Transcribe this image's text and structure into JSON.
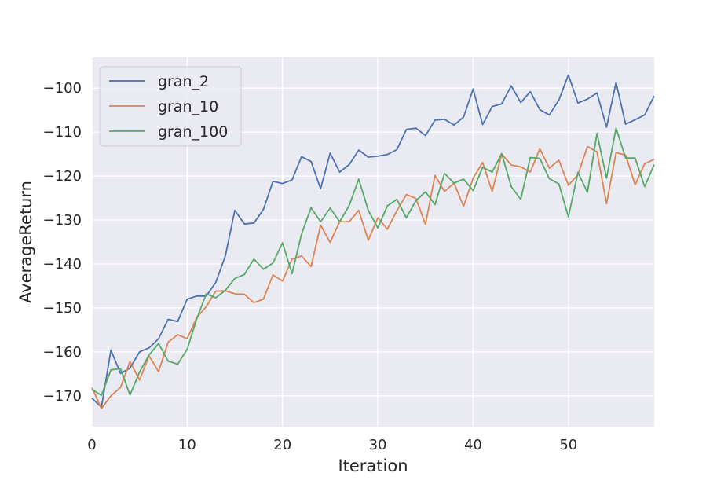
{
  "chart_data": {
    "type": "line",
    "title": "",
    "xlabel": "Iteration",
    "ylabel": "AverageReturn",
    "xlim": [
      0,
      59
    ],
    "ylim": [
      -177,
      -93
    ],
    "x_ticks": [
      0,
      10,
      20,
      30,
      40,
      50
    ],
    "y_ticks": [
      -170,
      -160,
      -150,
      -140,
      -130,
      -120,
      -110,
      -100
    ],
    "x_tick_labels": [
      "0",
      "10",
      "20",
      "30",
      "40",
      "50"
    ],
    "y_tick_labels": [
      "−170",
      "−160",
      "−150",
      "−140",
      "−130",
      "−120",
      "−110",
      "−100"
    ],
    "grid": true,
    "legend_position": "top-left",
    "background": "#eaeaf2",
    "x": [
      0,
      1,
      2,
      3,
      4,
      5,
      6,
      7,
      8,
      9,
      10,
      11,
      12,
      13,
      14,
      15,
      16,
      17,
      18,
      19,
      20,
      21,
      22,
      23,
      24,
      25,
      26,
      27,
      28,
      29,
      30,
      31,
      32,
      33,
      34,
      35,
      36,
      37,
      38,
      39,
      40,
      41,
      42,
      43,
      44,
      45,
      46,
      47,
      48,
      49,
      50,
      51,
      52,
      53,
      54,
      55,
      56,
      57,
      58,
      59
    ],
    "series": [
      {
        "name": "gran_2",
        "color": "#4c72b0",
        "values": [
          -170.5,
          -172.6,
          -159.6,
          -164.9,
          -163.7,
          -160.0,
          -159.1,
          -157.0,
          -152.6,
          -153.1,
          -148.0,
          -147.3,
          -147.3,
          -144.2,
          -138.2,
          -127.8,
          -130.9,
          -130.7,
          -127.6,
          -121.2,
          -121.7,
          -120.9,
          -115.6,
          -116.7,
          -122.9,
          -114.8,
          -119.1,
          -117.4,
          -114.1,
          -115.7,
          -115.5,
          -115.1,
          -114.0,
          -109.4,
          -109.1,
          -110.8,
          -107.3,
          -107.1,
          -108.4,
          -106.6,
          -100.2,
          -108.3,
          -104.2,
          -103.6,
          -99.5,
          -103.3,
          -100.8,
          -104.9,
          -106.1,
          -102.7,
          -97.0,
          -103.4,
          -102.5,
          -101.1,
          -108.9,
          -98.7,
          -108.2,
          -107.2,
          -106.1,
          -101.8
        ]
      },
      {
        "name": "gran_10",
        "color": "#dd8452",
        "values": [
          -168.1,
          -172.9,
          -170.0,
          -168.1,
          -162.2,
          -166.4,
          -160.9,
          -164.5,
          -157.8,
          -156.1,
          -157.0,
          -152.2,
          -149.7,
          -146.2,
          -146.1,
          -146.8,
          -146.9,
          -148.8,
          -148.0,
          -142.5,
          -143.9,
          -138.9,
          -138.2,
          -140.6,
          -131.2,
          -135.1,
          -130.4,
          -130.4,
          -127.8,
          -134.6,
          -129.5,
          -132.1,
          -127.9,
          -124.2,
          -125.1,
          -131.0,
          -119.9,
          -123.5,
          -121.6,
          -126.9,
          -120.5,
          -116.9,
          -123.5,
          -115.0,
          -117.5,
          -117.9,
          -119.1,
          -113.8,
          -118.2,
          -116.4,
          -122.1,
          -119.7,
          -113.3,
          -114.5,
          -126.3,
          -114.7,
          -115.2,
          -122.0,
          -117.2,
          -116.2
        ]
      },
      {
        "name": "gran_100",
        "color": "#55a868",
        "values": [
          -168.5,
          -169.9,
          -164.1,
          -163.8,
          -169.8,
          -164.6,
          -160.7,
          -158.1,
          -162.1,
          -162.8,
          -159.4,
          -152.5,
          -146.8,
          -147.7,
          -146.0,
          -143.3,
          -142.4,
          -138.9,
          -141.2,
          -139.8,
          -135.2,
          -142.2,
          -133.2,
          -127.2,
          -130.4,
          -127.3,
          -130.4,
          -126.7,
          -120.7,
          -127.8,
          -131.8,
          -126.8,
          -125.3,
          -129.5,
          -125.6,
          -123.6,
          -126.5,
          -119.4,
          -121.6,
          -120.7,
          -123.3,
          -118.0,
          -119.1,
          -114.9,
          -122.4,
          -125.3,
          -115.8,
          -116.0,
          -120.6,
          -121.8,
          -129.3,
          -119.2,
          -123.7,
          -110.3,
          -120.5,
          -109.1,
          -115.9,
          -115.9,
          -122.4,
          -117.4
        ]
      }
    ]
  }
}
